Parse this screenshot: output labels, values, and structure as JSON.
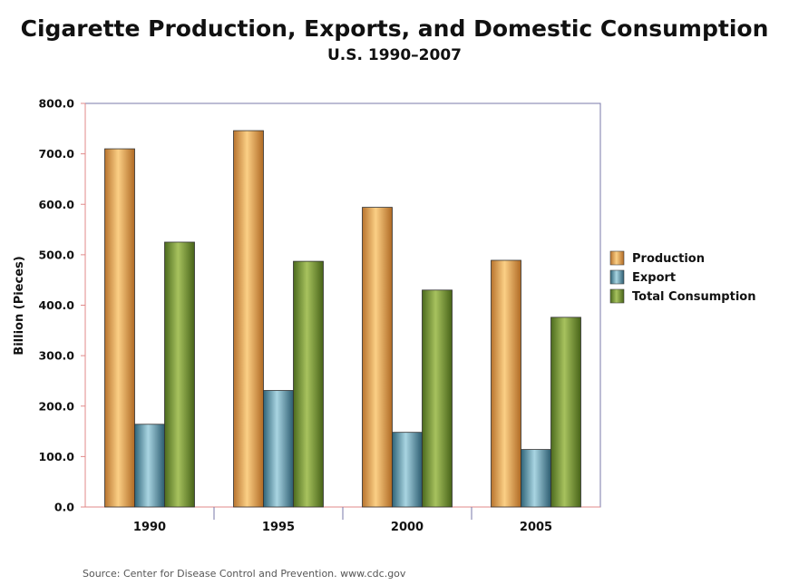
{
  "header": {
    "title": "Cigarette Production, Exports, and Domestic Consumption",
    "subtitle": "U.S. 1990–2007"
  },
  "footer": {
    "source": "Source: Center for Disease Control and Prevention.  www.cdc.gov"
  },
  "chart_data": {
    "type": "bar",
    "title": "Cigarette Production, Exports, and Domestic Consumption",
    "subtitle": "U.S. 1990–2007",
    "xlabel": "",
    "ylabel": "Billion (Pieces)",
    "ylim": [
      0,
      800
    ],
    "ytick_step": 100,
    "ytick_labels": [
      "0.0",
      "100.0",
      "200.0",
      "300.0",
      "400.0",
      "500.0",
      "600.0",
      "700.0",
      "800.0"
    ],
    "categories": [
      "1990",
      "1995",
      "2000",
      "2005"
    ],
    "grid": false,
    "legend_position": "right",
    "series": [
      {
        "name": "Production",
        "values": [
          710,
          746,
          594,
          489
        ],
        "color": "#e8a65a"
      },
      {
        "name": "Export",
        "values": [
          164,
          231,
          148,
          114
        ],
        "color": "#5a9ab0"
      },
      {
        "name": "Total Consumption",
        "values": [
          525,
          487,
          430,
          376
        ],
        "color": "#7c9a3c"
      }
    ]
  }
}
